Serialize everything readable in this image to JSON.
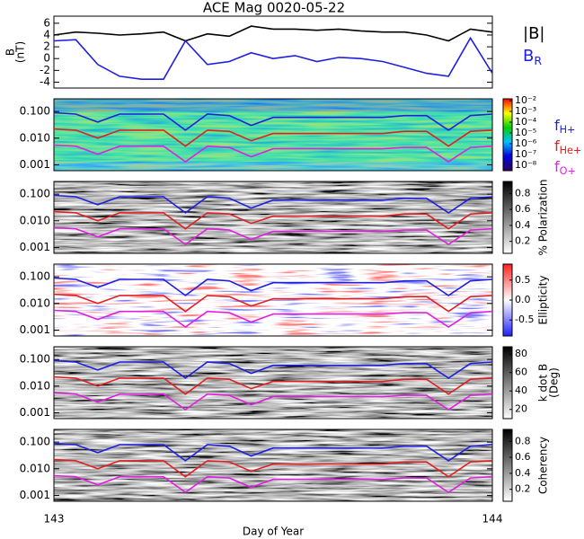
{
  "chart_data": [
    {
      "type": "line",
      "title": "ACE Mag 0020-05-22",
      "y_label_lines": [
        "B",
        "(nT)"
      ],
      "xlim": [
        143,
        144
      ],
      "ylim": [
        -5,
        7.2
      ],
      "yticks": [
        -4,
        -2,
        0,
        2,
        4,
        6
      ],
      "x": [
        143,
        143.05,
        143.1,
        143.15,
        143.2,
        143.25,
        143.3,
        143.35,
        143.4,
        143.45,
        143.5,
        143.55,
        143.6,
        143.65,
        143.7,
        143.75,
        143.8,
        143.85,
        143.9,
        143.95,
        144
      ],
      "series": [
        {
          "name": "|B|",
          "color": "#000000",
          "values": [
            4,
            4.5,
            4.3,
            4,
            4.2,
            4.5,
            3,
            4.2,
            3.8,
            5.5,
            5,
            5,
            4.8,
            5,
            4.7,
            4.5,
            4.5,
            4,
            3,
            5,
            4.5
          ]
        },
        {
          "name": "B",
          "subscript": "R",
          "color": "#1f1fe0",
          "values": [
            3,
            3.2,
            -1,
            -3,
            -3.5,
            -3.5,
            3,
            -1,
            -0.5,
            1,
            0,
            0.5,
            -0.5,
            0.2,
            0,
            -0.5,
            -1.5,
            -2.5,
            -3,
            3.5,
            -2.5
          ]
        }
      ]
    },
    {
      "type": "spectrogram",
      "xlim": [
        143,
        144
      ],
      "ylim": [
        0.0006,
        0.3
      ],
      "log_y": true,
      "yticks": [
        {
          "value": 0.001,
          "label": "0.001"
        },
        {
          "value": 0.01,
          "label": "0.010"
        },
        {
          "value": 0.1,
          "label": "0.100"
        }
      ],
      "x": [
        143,
        143.05,
        143.1,
        143.15,
        143.2,
        143.25,
        143.3,
        143.35,
        143.4,
        143.45,
        143.5,
        143.55,
        143.6,
        143.65,
        143.7,
        143.75,
        143.8,
        143.85,
        143.9,
        143.95,
        144
      ],
      "series": [
        {
          "name": "f",
          "subscript": "H+",
          "color": "#1f1fe0",
          "values": [
            0.09,
            0.08,
            0.04,
            0.08,
            0.08,
            0.08,
            0.02,
            0.08,
            0.07,
            0.03,
            0.06,
            0.06,
            0.06,
            0.06,
            0.06,
            0.06,
            0.07,
            0.07,
            0.02,
            0.07,
            0.08
          ]
        },
        {
          "name": "f",
          "subscript": "He+",
          "color": "#e02020",
          "values": [
            0.022,
            0.02,
            0.01,
            0.02,
            0.02,
            0.02,
            0.005,
            0.02,
            0.018,
            0.008,
            0.015,
            0.015,
            0.015,
            0.015,
            0.015,
            0.015,
            0.018,
            0.018,
            0.005,
            0.018,
            0.02
          ]
        },
        {
          "name": "f",
          "subscript": "O+",
          "color": "#e020e0",
          "values": [
            0.0055,
            0.005,
            0.0025,
            0.005,
            0.005,
            0.005,
            0.0013,
            0.005,
            0.0045,
            0.002,
            0.004,
            0.004,
            0.004,
            0.004,
            0.004,
            0.004,
            0.0045,
            0.0045,
            0.0013,
            0.0045,
            0.005
          ]
        }
      ],
      "colorbar": {
        "colormap": "rainbow",
        "log": true,
        "clim": [
          3e-09,
          0.015
        ],
        "ticks": [
          {
            "value": 0.01,
            "label": "10⁻²"
          },
          {
            "value": 0.001,
            "label": "10⁻³"
          },
          {
            "value": 0.0001,
            "label": "10⁻⁴"
          },
          {
            "value": 1e-05,
            "label": "10⁻⁵"
          },
          {
            "value": 1e-06,
            "label": "10⁻⁶"
          },
          {
            "value": 1e-07,
            "label": "10⁻⁷"
          },
          {
            "value": 1e-08,
            "label": "10⁻⁸"
          }
        ]
      }
    },
    {
      "type": "spectrogram",
      "xlim": [
        143,
        144
      ],
      "ylim": [
        0.0006,
        0.3
      ],
      "log_y": true,
      "yticks": [
        {
          "value": 0.001,
          "label": "0.001"
        },
        {
          "value": 0.01,
          "label": "0.010"
        },
        {
          "value": 0.1,
          "label": "0.100"
        }
      ],
      "colorbar": {
        "colormap": "gray",
        "clim": [
          0.05,
          0.95
        ],
        "ticks": [
          0.2,
          0.4,
          0.6,
          0.8
        ],
        "label_lines": [
          "% Polarization"
        ]
      }
    },
    {
      "type": "spectrogram",
      "xlim": [
        143,
        144
      ],
      "ylim": [
        0.0006,
        0.3
      ],
      "log_y": true,
      "yticks": [
        {
          "value": 0.001,
          "label": "0.001"
        },
        {
          "value": 0.01,
          "label": "0.010"
        },
        {
          "value": 0.1,
          "label": "0.100"
        }
      ],
      "colorbar": {
        "colormap": "bwr",
        "clim": [
          -0.9,
          0.9
        ],
        "ticks": [
          -0.5,
          {
            "value": 0,
            "label": "0.0"
          },
          0.5
        ],
        "label_lines": [
          "Ellipticity"
        ]
      }
    },
    {
      "type": "spectrogram",
      "xlim": [
        143,
        144
      ],
      "ylim": [
        0.0006,
        0.3
      ],
      "log_y": true,
      "yticks": [
        {
          "value": 0.001,
          "label": "0.001"
        },
        {
          "value": 0.01,
          "label": "0.010"
        },
        {
          "value": 0.1,
          "label": "0.100"
        }
      ],
      "colorbar": {
        "colormap": "gray",
        "clim": [
          10,
          88
        ],
        "ticks": [
          20,
          40,
          60,
          80
        ],
        "label_lines": [
          "k dot B",
          "(Deg)"
        ]
      }
    },
    {
      "type": "spectrogram",
      "xlim": [
        143,
        144
      ],
      "ylim": [
        0.0006,
        0.3
      ],
      "log_y": true,
      "yticks": [
        {
          "value": 0.001,
          "label": "0.001"
        },
        {
          "value": 0.01,
          "label": "0.010"
        },
        {
          "value": 0.1,
          "label": "0.100"
        }
      ],
      "xticks": [
        143,
        144
      ],
      "x_label": "Day of Year",
      "colorbar": {
        "colormap": "gray",
        "clim": [
          0.05,
          0.95
        ],
        "ticks": [
          0.2,
          0.4,
          0.6,
          0.8
        ],
        "label_lines": [
          "Coherency"
        ]
      }
    }
  ]
}
